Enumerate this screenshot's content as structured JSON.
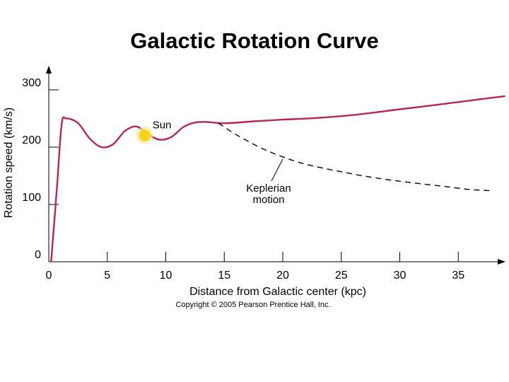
{
  "chart_data": {
    "type": "line",
    "title": "Galactic Rotation Curve",
    "xlabel": "Distance from Galactic center (kpc)",
    "ylabel": "Rotation speed (km/s)",
    "xlim": [
      0,
      39
    ],
    "ylim": [
      0,
      310
    ],
    "xticks": [
      0,
      5,
      10,
      15,
      20,
      25,
      30,
      35
    ],
    "yticks": [
      0,
      100,
      200,
      300
    ],
    "grid": false,
    "colors": {
      "observed": "#b5265a",
      "keplerian": "#000000",
      "sun": "#f5d318"
    },
    "series": [
      {
        "style": "solid",
        "points": [
          [
            0.2,
            0
          ],
          [
            0.7,
            130
          ],
          [
            1.1,
            240
          ],
          [
            1.5,
            250
          ],
          [
            2.5,
            242
          ],
          [
            3.5,
            215
          ],
          [
            4.5,
            200
          ],
          [
            5.5,
            205
          ],
          [
            6.5,
            228
          ],
          [
            7.5,
            236
          ],
          [
            8.5,
            222
          ],
          [
            9.5,
            213
          ],
          [
            10.5,
            218
          ],
          [
            11.5,
            235
          ],
          [
            12.5,
            243
          ],
          [
            13.5,
            244
          ],
          [
            14.5,
            242
          ],
          [
            15.5,
            242
          ],
          [
            17.5,
            245
          ],
          [
            20,
            248
          ],
          [
            23,
            251
          ],
          [
            26,
            256
          ],
          [
            30,
            266
          ],
          [
            34,
            276
          ],
          [
            37,
            284
          ],
          [
            39,
            289
          ]
        ]
      },
      {
        "style": "dashed",
        "points": [
          [
            14.5,
            242
          ],
          [
            16,
            222
          ],
          [
            18,
            200
          ],
          [
            20,
            183
          ],
          [
            22,
            170
          ],
          [
            25,
            157
          ],
          [
            28,
            146
          ],
          [
            31,
            138
          ],
          [
            34,
            131
          ],
          [
            36,
            126
          ],
          [
            37.8,
            124
          ]
        ]
      }
    ],
    "sun": {
      "x": 8.2,
      "y": 228,
      "label": "Sun"
    },
    "annotations": [
      {
        "text_lines": [
          "Keplerian",
          "motion"
        ],
        "points_to": {
          "x": 20,
          "y": 183
        }
      }
    ],
    "copyright": "Copyright © 2005 Pearson Prentice Hall, Inc."
  }
}
